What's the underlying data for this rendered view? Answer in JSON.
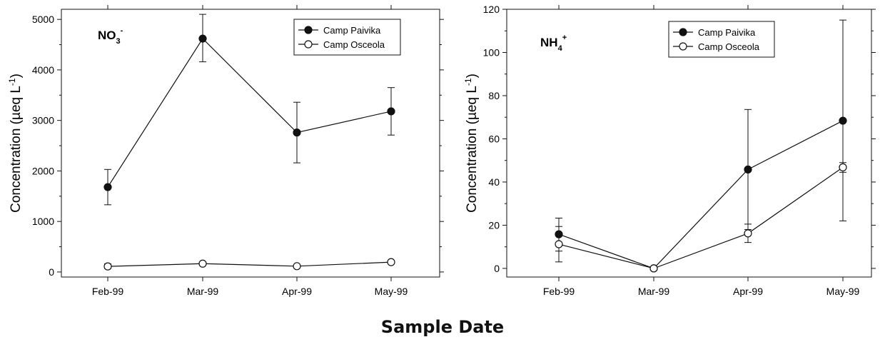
{
  "figure": {
    "shared_xlabel": "Sample Date"
  },
  "chart_data": [
    {
      "type": "line",
      "panel_label": {
        "base": "NO",
        "sub": "3",
        "sup": "-"
      },
      "ylabel": {
        "text": "Concentration (µeq L",
        "sup": "-1",
        "close": ")"
      },
      "xlabel": "",
      "categories": [
        "Feb-99",
        "Mar-99",
        "Apr-99",
        "May-99"
      ],
      "ylim": [
        -100,
        5200
      ],
      "yticks": [
        0,
        1000,
        2000,
        3000,
        4000,
        5000
      ],
      "minor_step": 500,
      "legend": "top-right",
      "grid": false,
      "series": [
        {
          "name": "Camp Paivika",
          "marker": "filled-circle",
          "values": [
            1680,
            4620,
            2760,
            3180
          ],
          "err_low": [
            1330,
            4160,
            2160,
            2710
          ],
          "err_high": [
            2030,
            5100,
            3360,
            3650
          ]
        },
        {
          "name": "Camp Osceola",
          "marker": "open-circle",
          "values": [
            110,
            165,
            115,
            195
          ],
          "err_low": [
            70,
            140,
            95,
            170
          ],
          "err_high": [
            160,
            195,
            140,
            220
          ]
        }
      ]
    },
    {
      "type": "line",
      "panel_label": {
        "base": "NH",
        "sub": "4",
        "sup": "+"
      },
      "ylabel": {
        "text": "Concentration (µeq L",
        "sup": "-1",
        "close": ")"
      },
      "xlabel": "",
      "categories": [
        "Feb-99",
        "Mar-99",
        "Apr-99",
        "May-99"
      ],
      "ylim": [
        -4,
        120
      ],
      "yticks": [
        0,
        20,
        40,
        60,
        80,
        100,
        120
      ],
      "minor_step": 10,
      "legend": "top-right",
      "grid": false,
      "series": [
        {
          "name": "Camp Paivika",
          "marker": "filled-circle",
          "values": [
            15.8,
            0,
            45.8,
            68.4
          ],
          "err_low": [
            8,
            0,
            18,
            22
          ],
          "err_high": [
            23.3,
            0,
            73.6,
            115
          ]
        },
        {
          "name": "Camp Osceola",
          "marker": "open-circle",
          "values": [
            11.2,
            0,
            16.2,
            46.8
          ],
          "err_low": [
            3,
            0,
            12,
            44.5
          ],
          "err_high": [
            19.4,
            0,
            20.5,
            49
          ]
        }
      ]
    }
  ]
}
